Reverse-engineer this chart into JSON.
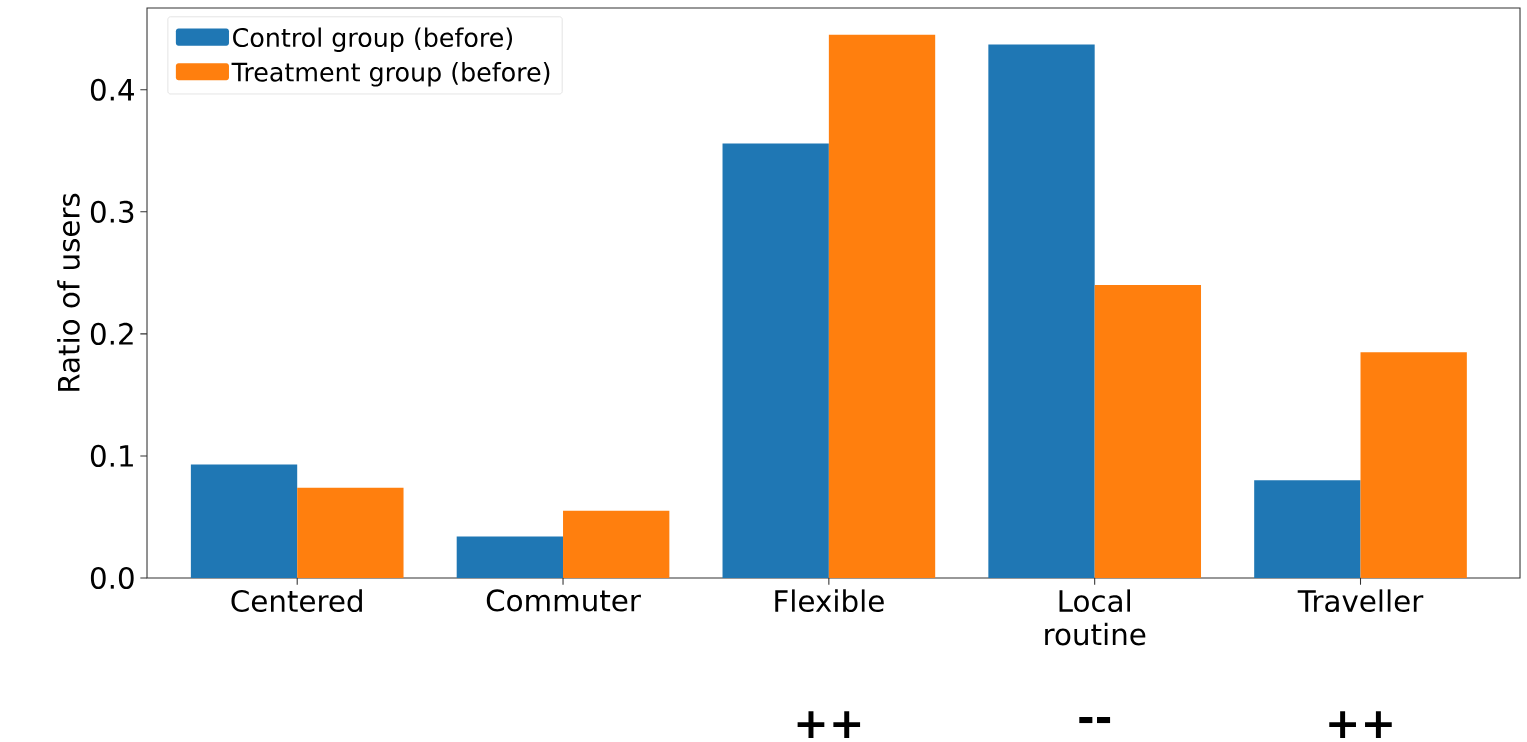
{
  "chart_data": {
    "type": "bar",
    "ylabel": "Ratio of users",
    "categories": [
      "Centered",
      "Commuter",
      "Flexible",
      "Local routine",
      "Traveller"
    ],
    "series": [
      {
        "name": "Control group (before)",
        "color": "#1f77b4",
        "values": [
          0.093,
          0.034,
          0.356,
          0.437,
          0.08
        ]
      },
      {
        "name": "Treatment group (before)",
        "color": "#ff7f0e",
        "values": [
          0.074,
          0.055,
          0.445,
          0.24,
          0.185
        ]
      }
    ],
    "ylim": [
      0,
      0.467
    ],
    "yticks": [
      {
        "value": 0,
        "label": "0.0"
      },
      0.1,
      0.2,
      0.3,
      0.4
    ],
    "grid": false,
    "legend": "top left",
    "annotations": [
      "++",
      "--",
      "++"
    ]
  }
}
